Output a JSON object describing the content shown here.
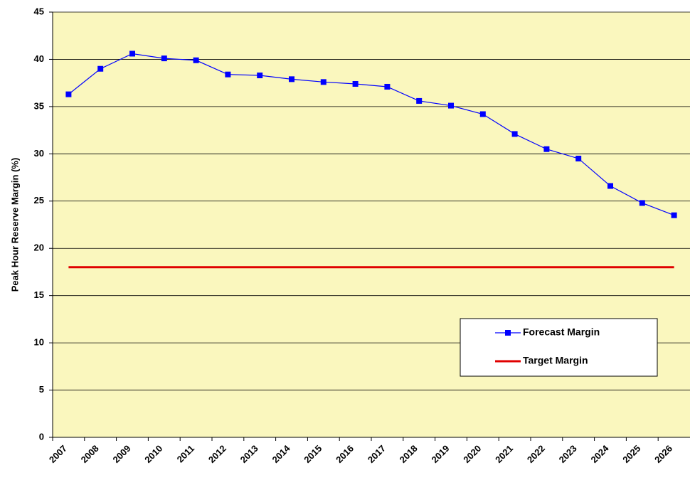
{
  "chart_data": {
    "type": "line",
    "y_label": "Peak Hour Reserve Margin (%)",
    "categories": [
      "2007",
      "2008",
      "2009",
      "2010",
      "2011",
      "2012",
      "2013",
      "2014",
      "2015",
      "2016",
      "2017",
      "2018",
      "2019",
      "2020",
      "2021",
      "2022",
      "2023",
      "2024",
      "2025",
      "2026"
    ],
    "series": [
      {
        "name": "Forecast Margin",
        "color": "#0000FF",
        "marker": "square",
        "values": [
          36.3,
          39.0,
          40.6,
          40.1,
          39.9,
          38.4,
          38.3,
          37.9,
          37.6,
          37.4,
          37.1,
          35.6,
          35.1,
          34.2,
          32.1,
          30.5,
          29.5,
          26.6,
          24.8,
          23.5
        ]
      },
      {
        "name": "Target Margin",
        "color": "#E00000",
        "marker": "none",
        "values": [
          18,
          18,
          18,
          18,
          18,
          18,
          18,
          18,
          18,
          18,
          18,
          18,
          18,
          18,
          18,
          18,
          18,
          18,
          18,
          18
        ]
      }
    ],
    "ylim": [
      0,
      45
    ],
    "yticks": [
      0,
      5,
      10,
      15,
      20,
      25,
      30,
      35,
      40,
      45
    ],
    "grid": true,
    "legend": "lower right",
    "plot_background": "#FAF7BE"
  }
}
